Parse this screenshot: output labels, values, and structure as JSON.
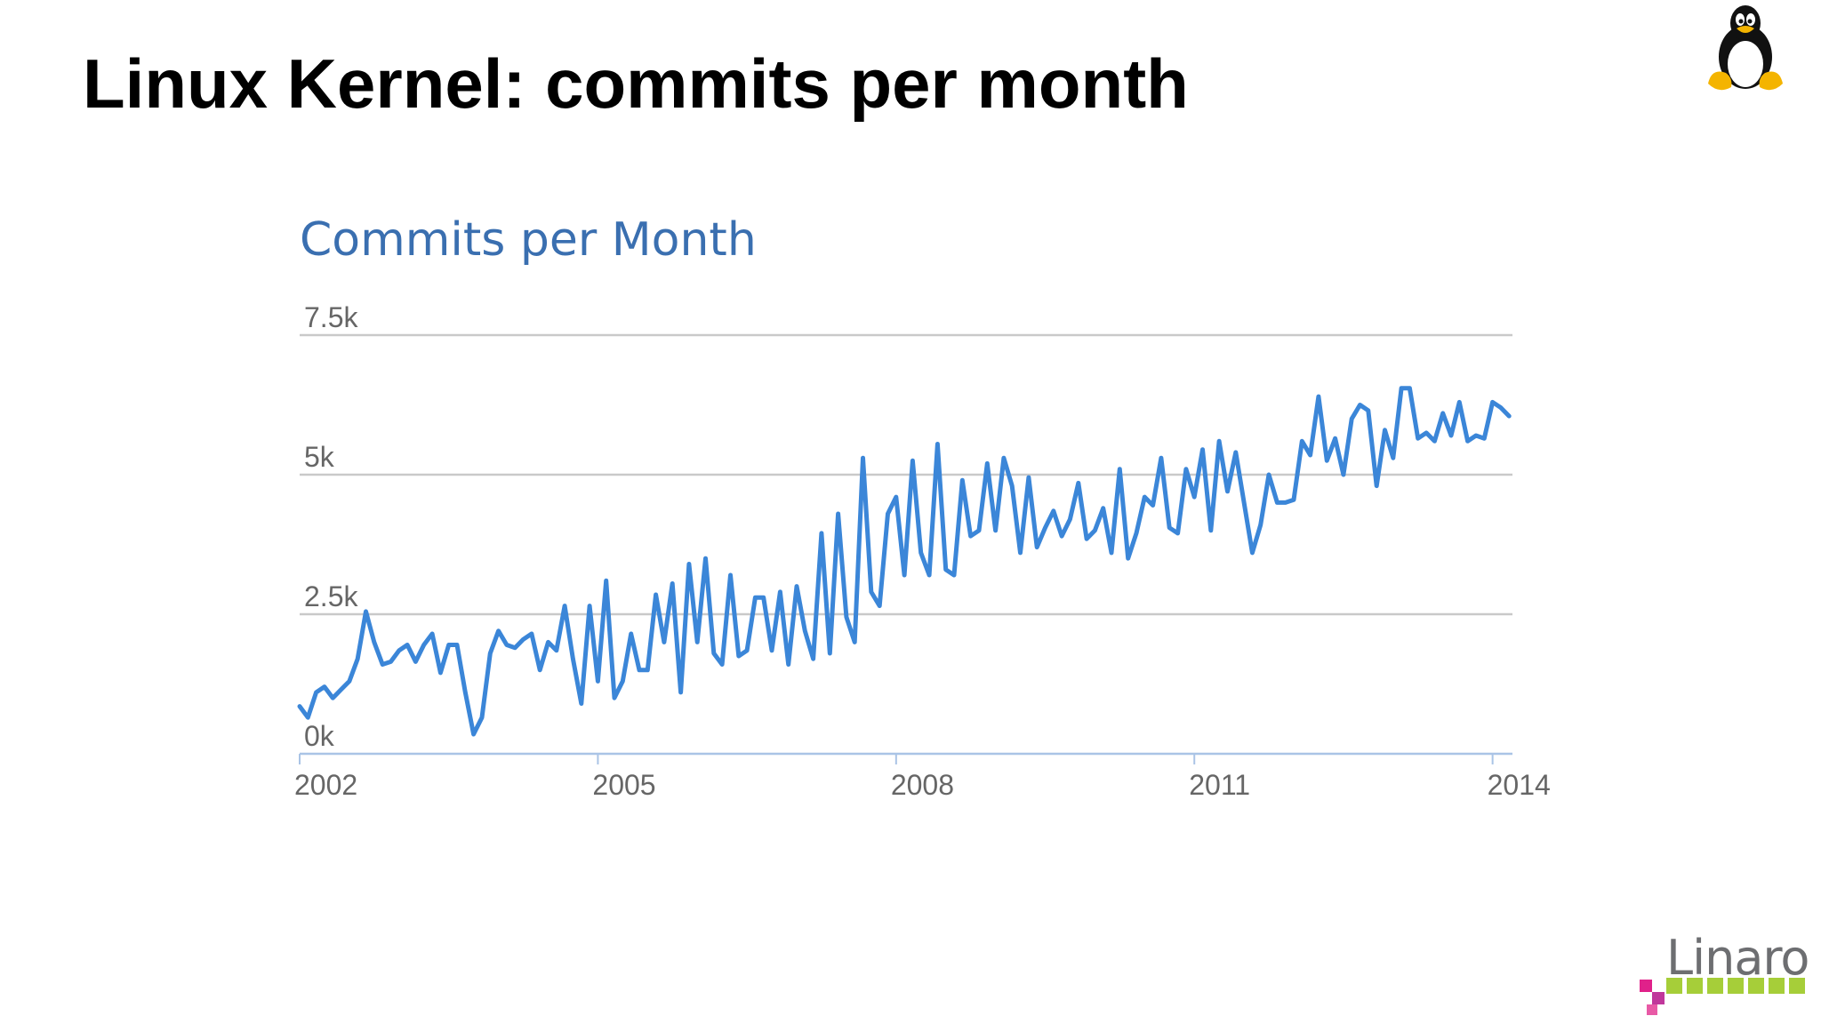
{
  "slide": {
    "title": "Linux Kernel: commits per month",
    "logo_text": "Linaro"
  },
  "icons": {
    "corner_logo": "tux-penguin-icon",
    "footer_logo": "linaro-logo-icon"
  },
  "colors": {
    "line": "#3b86d8",
    "chart_title": "#3a6fb0",
    "gridline": "#c9c9c9",
    "tick_text": "#666666",
    "linaro_green": "#a6ce39",
    "linaro_pink": "#e0218a"
  },
  "chart_data": {
    "type": "line",
    "title": "Commits per Month",
    "xlabel": "",
    "ylabel": "",
    "xlim": [
      2002,
      2014.2
    ],
    "ylim": [
      0,
      7500
    ],
    "yticks": [
      0,
      2500,
      5000,
      7500
    ],
    "ytick_labels": [
      "0k",
      "2.5k",
      "5k",
      "7.5k"
    ],
    "xticks": [
      2002,
      2005,
      2008,
      2011,
      2014
    ],
    "xtick_labels": [
      "2002",
      "2005",
      "2008",
      "2011",
      "2014"
    ],
    "grid": true,
    "legend": "none",
    "series": [
      {
        "x_start": 2002.0,
        "x_step": 0.08333,
        "values": [
          850,
          650,
          1100,
          1200,
          1000,
          1150,
          1300,
          1700,
          2550,
          2000,
          1600,
          1650,
          1850,
          1950,
          1650,
          1950,
          2150,
          1450,
          1950,
          1950,
          1100,
          350,
          650,
          1800,
          2200,
          1950,
          1900,
          2050,
          2150,
          1500,
          2000,
          1850,
          2650,
          1700,
          900,
          2650,
          1300,
          3100,
          1000,
          1300,
          2150,
          1500,
          1500,
          2850,
          2000,
          3050,
          1100,
          3400,
          2000,
          3500,
          1800,
          1600,
          3200,
          1750,
          1850,
          2800,
          2800,
          1850,
          2900,
          1600,
          3000,
          2200,
          1700,
          3950,
          1800,
          4300,
          2450,
          2000,
          5300,
          2900,
          2650,
          4300,
          4600,
          3200,
          5250,
          3600,
          3200,
          5550,
          3300,
          3200,
          4900,
          3900,
          4000,
          5200,
          4000,
          5300,
          4800,
          3600,
          4950,
          3700,
          4050,
          4350,
          3900,
          4200,
          4850,
          3850,
          4000,
          4400,
          3600,
          5100,
          3500,
          3950,
          4600,
          4450,
          5300,
          4050,
          3950,
          5100,
          4600,
          5450,
          4000,
          5600,
          4700,
          5400,
          4500,
          3600,
          4100,
          5000,
          4500,
          4500,
          4550,
          5600,
          5350,
          6400,
          5250,
          5650,
          5000,
          6000,
          6250,
          6150,
          4800,
          5800,
          5300,
          6550,
          6550,
          5650,
          5750,
          5600,
          6100,
          5700,
          6300,
          5600,
          5700,
          5650,
          6300,
          6200,
          6050
        ]
      }
    ]
  }
}
